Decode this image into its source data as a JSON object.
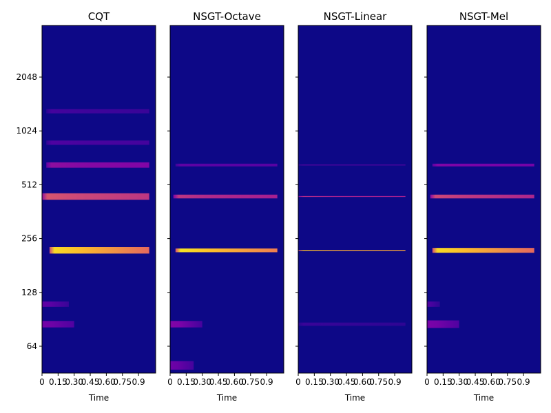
{
  "chart_data": {
    "type": "heatmap",
    "layout": "1x4 subplots, shared y-axis",
    "colormap": "plasma",
    "background_color": "#0d0887",
    "grid": false,
    "y_axis": {
      "scale": "log2",
      "label": "",
      "ticks": [
        64,
        128,
        256,
        512,
        1024,
        2048
      ],
      "tick_labels": [
        "64",
        "128",
        "256",
        "512",
        "1024",
        "2048"
      ],
      "range": [
        46,
        4096
      ]
    },
    "x_axis": {
      "label": "Time",
      "ticks": [
        0,
        0.15,
        0.3,
        0.45,
        0.6,
        0.75,
        0.9
      ],
      "tick_labels": [
        "0",
        "0.15",
        "0.30",
        "0.45",
        "0.60",
        "0.75",
        "0.9"
      ],
      "range": [
        0,
        1.06
      ]
    },
    "panels": [
      {
        "title": "CQT",
        "bands": [
          {
            "freq": 220,
            "half_width_log2": 0.06,
            "t_start": 0.07,
            "t_end": 1.0,
            "peak_intensity": 0.93,
            "tail_intensity": 0.62
          },
          {
            "freq": 440,
            "half_width_log2": 0.06,
            "t_start": 0.0,
            "t_end": 1.0,
            "peak_intensity": 0.55,
            "tail_intensity": 0.45
          },
          {
            "freq": 660,
            "half_width_log2": 0.05,
            "t_start": 0.04,
            "t_end": 1.0,
            "peak_intensity": 0.3,
            "tail_intensity": 0.26
          },
          {
            "freq": 880,
            "half_width_log2": 0.04,
            "t_start": 0.04,
            "t_end": 1.0,
            "peak_intensity": 0.12,
            "tail_intensity": 0.1
          },
          {
            "freq": 1320,
            "half_width_log2": 0.04,
            "t_start": 0.04,
            "t_end": 1.0,
            "peak_intensity": 0.1,
            "tail_intensity": 0.08
          },
          {
            "freq": 110,
            "half_width_log2": 0.05,
            "t_start": 0.0,
            "t_end": 0.25,
            "peak_intensity": 0.16,
            "tail_intensity": 0.08
          },
          {
            "freq": 85,
            "half_width_log2": 0.06,
            "t_start": 0.0,
            "t_end": 0.3,
            "peak_intensity": 0.22,
            "tail_intensity": 0.12
          }
        ]
      },
      {
        "title": "NSGT-Octave",
        "bands": [
          {
            "freq": 220,
            "half_width_log2": 0.035,
            "t_start": 0.05,
            "t_end": 1.0,
            "peak_intensity": 0.95,
            "tail_intensity": 0.68
          },
          {
            "freq": 440,
            "half_width_log2": 0.035,
            "t_start": 0.03,
            "t_end": 1.0,
            "peak_intensity": 0.45,
            "tail_intensity": 0.38
          },
          {
            "freq": 660,
            "half_width_log2": 0.025,
            "t_start": 0.05,
            "t_end": 1.0,
            "peak_intensity": 0.16,
            "tail_intensity": 0.14
          },
          {
            "freq": 85,
            "half_width_log2": 0.06,
            "t_start": 0.0,
            "t_end": 0.3,
            "peak_intensity": 0.26,
            "tail_intensity": 0.1
          },
          {
            "freq": 50,
            "half_width_log2": 0.08,
            "t_start": 0.0,
            "t_end": 0.22,
            "peak_intensity": 0.2,
            "tail_intensity": 0.1
          }
        ]
      },
      {
        "title": "NSGT-Linear",
        "bands": [
          {
            "freq": 220,
            "half_width_log2": 0.008,
            "t_start": 0.0,
            "t_end": 1.0,
            "peak_intensity": 0.88,
            "tail_intensity": 0.8
          },
          {
            "freq": 440,
            "half_width_log2": 0.008,
            "t_start": 0.0,
            "t_end": 1.0,
            "peak_intensity": 0.42,
            "tail_intensity": 0.38
          },
          {
            "freq": 660,
            "half_width_log2": 0.006,
            "t_start": 0.0,
            "t_end": 1.0,
            "peak_intensity": 0.22,
            "tail_intensity": 0.2
          },
          {
            "freq": 85,
            "half_width_log2": 0.03,
            "t_start": 0.0,
            "t_end": 1.0,
            "peak_intensity": 0.08,
            "tail_intensity": 0.06
          }
        ]
      },
      {
        "title": "NSGT-Mel",
        "bands": [
          {
            "freq": 220,
            "half_width_log2": 0.045,
            "t_start": 0.05,
            "t_end": 1.0,
            "peak_intensity": 0.93,
            "tail_intensity": 0.62
          },
          {
            "freq": 440,
            "half_width_log2": 0.035,
            "t_start": 0.03,
            "t_end": 1.0,
            "peak_intensity": 0.5,
            "tail_intensity": 0.4
          },
          {
            "freq": 660,
            "half_width_log2": 0.025,
            "t_start": 0.05,
            "t_end": 1.0,
            "peak_intensity": 0.26,
            "tail_intensity": 0.22
          },
          {
            "freq": 85,
            "half_width_log2": 0.07,
            "t_start": 0.0,
            "t_end": 0.3,
            "peak_intensity": 0.24,
            "tail_intensity": 0.12
          },
          {
            "freq": 110,
            "half_width_log2": 0.05,
            "t_start": 0.0,
            "t_end": 0.12,
            "peak_intensity": 0.12,
            "tail_intensity": 0.06
          }
        ]
      }
    ]
  }
}
